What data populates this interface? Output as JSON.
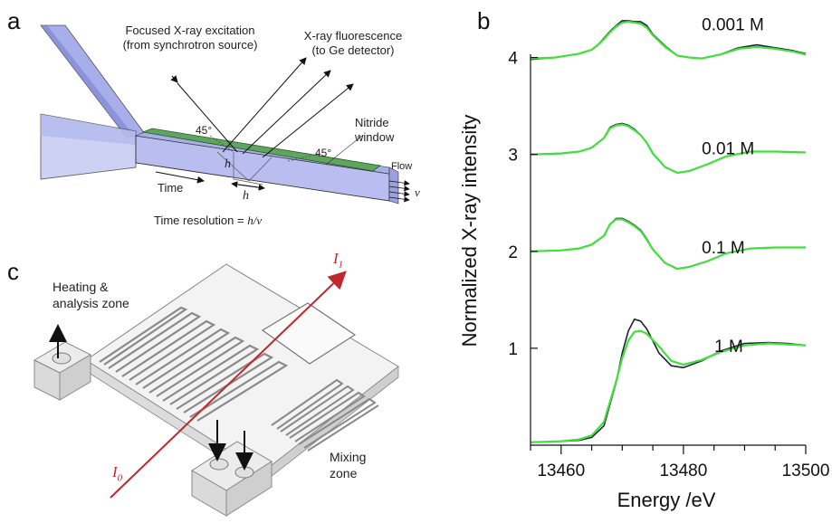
{
  "panels": {
    "a": "a",
    "b": "b",
    "c": "c"
  },
  "panel_a": {
    "excitation_line1": "Focused X-ray excitation",
    "excitation_line2": "(from synchrotron source)",
    "fluorescence_line1": "X-ray fluorescence",
    "fluorescence_line2": "(to Ge detector)",
    "angle_left": "45°",
    "angle_right": "45°",
    "window_line1": "Nitride",
    "window_line2": "window",
    "flow": "Flow",
    "velocity": "v",
    "h_vertical": "h",
    "h_horizontal": "h",
    "time": "Time",
    "resolution_prefix": "Time resolution = ",
    "resolution_formula": "h/v",
    "colors": {
      "channel": "#b9bdf0",
      "window": "#5ea55e"
    }
  },
  "panel_c": {
    "heating_line1": "Heating &",
    "heating_line2": "analysis zone",
    "mixing_line1": "Mixing",
    "mixing_line2": "zone",
    "beam_out": "I",
    "beam_out_sub": "1",
    "beam_in": "I",
    "beam_in_sub": "0",
    "colors": {
      "beam": "#c0282d"
    }
  },
  "chart_data": {
    "type": "line",
    "title": "",
    "xlabel": "Energy /eV",
    "ylabel": "Normalized X-ray intensity",
    "xlim": [
      13455,
      13500
    ],
    "ylim": [
      0,
      4.5
    ],
    "xticks": [
      13460,
      13480,
      13500
    ],
    "yticks": [
      1,
      2,
      3,
      4
    ],
    "grid": false,
    "curve_labels": [
      "0.001 M",
      "0.01 M",
      "0.1 M",
      "1 M"
    ],
    "colors": {
      "data": "#1d2133",
      "fit": "#3fe03a"
    },
    "series": [
      {
        "x": [
          13455,
          13460,
          13463,
          13465,
          13467,
          13469,
          13470,
          13471,
          13472,
          13473,
          13474,
          13476,
          13478,
          13480,
          13483,
          13486,
          13490,
          13494,
          13497,
          13500
        ],
        "y": [
          0.03,
          0.04,
          0.05,
          0.08,
          0.2,
          0.65,
          0.95,
          1.18,
          1.3,
          1.28,
          1.2,
          0.95,
          0.82,
          0.8,
          0.87,
          0.97,
          1.05,
          1.06,
          1.05,
          1.03
        ]
      },
      {
        "x": [
          13455,
          13460,
          13463,
          13465,
          13467,
          13469,
          13470,
          13471,
          13472,
          13473,
          13474,
          13476,
          13478,
          13480,
          13483,
          13486,
          13490,
          13494,
          13497,
          13500
        ],
        "y": [
          0.03,
          0.04,
          0.06,
          0.1,
          0.24,
          0.66,
          0.9,
          1.08,
          1.17,
          1.18,
          1.15,
          1.02,
          0.87,
          0.83,
          0.88,
          0.96,
          1.03,
          1.05,
          1.04,
          1.03
        ]
      },
      {
        "x": [
          13455,
          13460,
          13463,
          13465,
          13467,
          13468,
          13469,
          13470,
          13471,
          13472,
          13473,
          13474,
          13475,
          13477,
          13479,
          13481,
          13484,
          13487,
          13491,
          13495,
          13500
        ],
        "y": [
          2.0,
          2.01,
          2.03,
          2.07,
          2.16,
          2.28,
          2.34,
          2.34,
          2.31,
          2.27,
          2.22,
          2.13,
          2.02,
          1.88,
          1.82,
          1.84,
          1.9,
          1.98,
          2.03,
          2.04,
          2.04
        ]
      },
      {
        "x": [
          13455,
          13460,
          13463,
          13465,
          13467,
          13468,
          13469,
          13470,
          13471,
          13472,
          13473,
          13474,
          13475,
          13477,
          13479,
          13481,
          13484,
          13487,
          13491,
          13495,
          13500
        ],
        "y": [
          2.0,
          2.01,
          2.03,
          2.07,
          2.16,
          2.28,
          2.33,
          2.33,
          2.3,
          2.26,
          2.21,
          2.12,
          2.02,
          1.88,
          1.82,
          1.84,
          1.9,
          1.98,
          2.03,
          2.04,
          2.04
        ]
      },
      {
        "x": [
          13455,
          13460,
          13463,
          13465,
          13467,
          13468,
          13469,
          13470,
          13471,
          13472,
          13473,
          13474,
          13475,
          13477,
          13479,
          13481,
          13484,
          13487,
          13491,
          13495,
          13500
        ],
        "y": [
          3.0,
          3.01,
          3.03,
          3.07,
          3.17,
          3.28,
          3.31,
          3.32,
          3.3,
          3.26,
          3.2,
          3.12,
          3.01,
          2.87,
          2.81,
          2.83,
          2.9,
          2.98,
          3.03,
          3.03,
          3.02
        ]
      },
      {
        "x": [
          13455,
          13460,
          13463,
          13465,
          13467,
          13468,
          13469,
          13470,
          13471,
          13472,
          13473,
          13474,
          13475,
          13477,
          13479,
          13481,
          13484,
          13487,
          13491,
          13495,
          13500
        ],
        "y": [
          3.0,
          3.01,
          3.03,
          3.07,
          3.17,
          3.27,
          3.3,
          3.31,
          3.29,
          3.25,
          3.2,
          3.12,
          3.01,
          2.87,
          2.81,
          2.83,
          2.9,
          2.98,
          3.03,
          3.03,
          3.02
        ]
      },
      {
        "x": [
          13455,
          13459,
          13461,
          13463,
          13464,
          13465,
          13466,
          13467,
          13468,
          13469,
          13470,
          13471,
          13472,
          13473,
          13474,
          13475,
          13477,
          13479,
          13481,
          13483,
          13486,
          13489,
          13492,
          13495,
          13498,
          13500
        ],
        "y": [
          3.98,
          4.0,
          4.02,
          4.04,
          4.06,
          4.08,
          4.13,
          4.2,
          4.27,
          4.33,
          4.38,
          4.38,
          4.37,
          4.37,
          4.33,
          4.24,
          4.12,
          4.02,
          4.0,
          3.99,
          4.03,
          4.1,
          4.13,
          4.1,
          4.07,
          4.04
        ]
      },
      {
        "x": [
          13455,
          13459,
          13461,
          13463,
          13464,
          13465,
          13466,
          13467,
          13468,
          13469,
          13470,
          13471,
          13472,
          13473,
          13474,
          13475,
          13477,
          13479,
          13481,
          13483,
          13486,
          13489,
          13492,
          13495,
          13498,
          13500
        ],
        "y": [
          3.99,
          4.0,
          4.02,
          4.04,
          4.06,
          4.08,
          4.13,
          4.19,
          4.26,
          4.32,
          4.36,
          4.37,
          4.36,
          4.35,
          4.31,
          4.23,
          4.11,
          4.02,
          4.0,
          3.99,
          4.03,
          4.09,
          4.11,
          4.09,
          4.06,
          4.03
        ]
      }
    ]
  }
}
